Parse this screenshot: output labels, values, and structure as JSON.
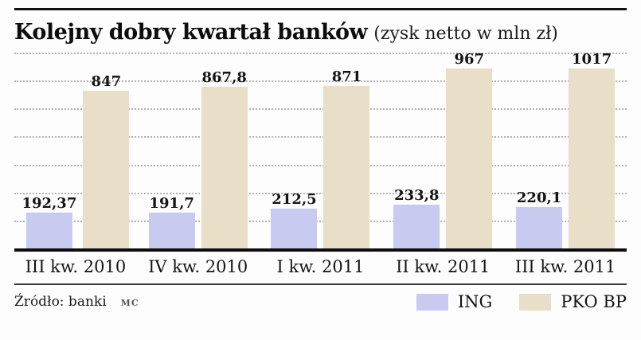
{
  "header": {
    "title": "Kolejny dobry kwartał banków",
    "subtitle": "(zysk netto  w mln zł)"
  },
  "footer": {
    "source": "Źródło: banki",
    "credit": "MC"
  },
  "legend": [
    {
      "label": "ING",
      "color": "#c8cbef"
    },
    {
      "label": "PKO BP",
      "color": "#e9dfc9"
    }
  ],
  "colors": {
    "ing_bar": "#c8cbef",
    "pko_bar": "#e9dfc9",
    "axis_line": "#0d0d0d",
    "gridline": "#b3b3b3"
  },
  "chart_data": {
    "type": "bar",
    "title": "Kolejny dobry kwartał banków (zysk netto w mln zł)",
    "categories": [
      "III kw. 2010",
      "IV kw. 2010",
      "I kw. 2011",
      "II kw. 2011",
      "III kw. 2011"
    ],
    "series": [
      {
        "name": "ING",
        "color": "#c8cbef",
        "values": [
          192.37,
          191.7,
          212.5,
          233.8,
          220.1
        ],
        "labels": [
          "192,37",
          "191,7",
          "212,5",
          "233,8",
          "220,1"
        ]
      },
      {
        "name": "PKO BP",
        "color": "#e9dfc9",
        "values": [
          847,
          867.8,
          871,
          967,
          1017
        ],
        "labels": [
          "847",
          "867,8",
          "871",
          "967",
          "1017"
        ]
      }
    ],
    "xlabel": "",
    "ylabel": "zysk netto w mln zł",
    "ylim": [
      0,
      1050
    ],
    "grid": "horizontal-dotted",
    "gridline_count": 7,
    "legend_position": "bottom-right"
  }
}
